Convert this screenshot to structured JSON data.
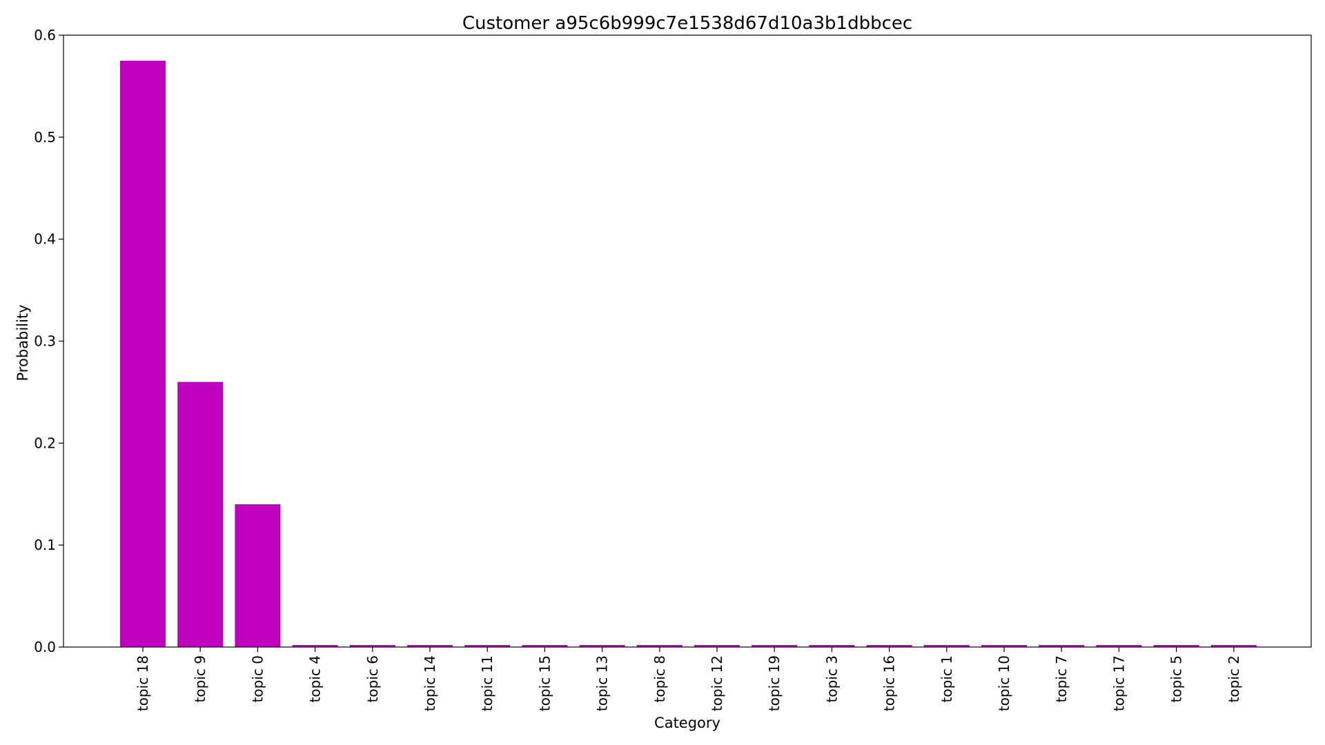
{
  "chart_data": {
    "type": "bar",
    "title": "Customer a95c6b999c7e1538d67d10a3b1dbbcec",
    "xlabel": "Category",
    "ylabel": "Probability",
    "categories": [
      "topic 18",
      "topic 9",
      "topic 0",
      "topic 4",
      "topic 6",
      "topic 14",
      "topic 11",
      "topic 15",
      "topic 13",
      "topic 8",
      "topic 12",
      "topic 19",
      "topic 3",
      "topic 16",
      "topic 1",
      "topic 10",
      "topic 7",
      "topic 17",
      "topic 5",
      "topic 2"
    ],
    "values": [
      0.575,
      0.26,
      0.14,
      0.002,
      0.002,
      0.002,
      0.002,
      0.002,
      0.002,
      0.002,
      0.002,
      0.002,
      0.002,
      0.002,
      0.002,
      0.002,
      0.002,
      0.002,
      0.002,
      0.002
    ],
    "ylim": [
      0,
      0.6
    ],
    "yticks": [
      "0.0",
      "0.1",
      "0.2",
      "0.3",
      "0.4",
      "0.5",
      "0.6"
    ],
    "bar_color": "#bf00bf",
    "grid": false,
    "legend": "none"
  }
}
